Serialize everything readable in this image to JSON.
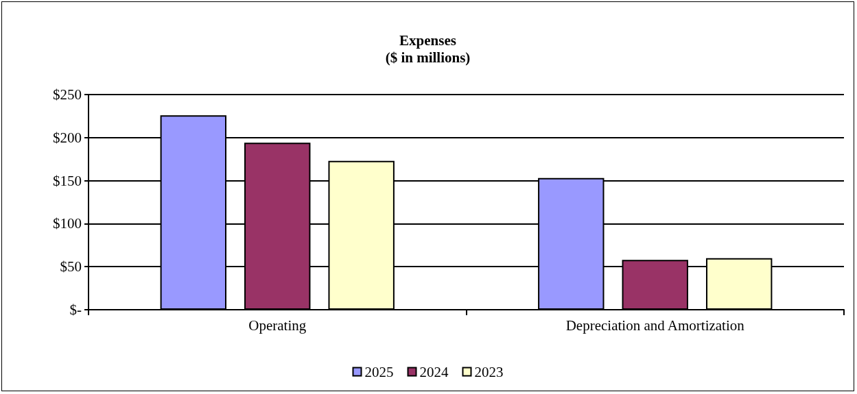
{
  "chart_data": {
    "type": "bar",
    "title": "Expenses\n($ in millions)",
    "categories": [
      "Operating",
      "Depreciation and Amortization"
    ],
    "series": [
      {
        "name": "2025",
        "color": "#9999ff",
        "values": [
          226,
          153
        ]
      },
      {
        "name": "2024",
        "color": "#993366",
        "values": [
          194,
          58
        ]
      },
      {
        "name": "2023",
        "color": "#ffffcc",
        "values": [
          173,
          60
        ]
      }
    ],
    "ylim": [
      0,
      250
    ],
    "yticks": [
      {
        "value": 0,
        "label": "$-"
      },
      {
        "value": 50,
        "label": "$50"
      },
      {
        "value": 100,
        "label": "$100"
      },
      {
        "value": 150,
        "label": "$150"
      },
      {
        "value": 200,
        "label": "$200"
      },
      {
        "value": 250,
        "label": "$250"
      }
    ],
    "grid": "y",
    "legend": "bottom"
  }
}
